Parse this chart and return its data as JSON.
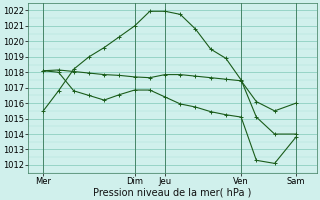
{
  "background_color": "#d0f0ec",
  "grid_major_color": "#80c8b8",
  "grid_minor_color": "#a8ddd4",
  "line_color": "#1a5c1a",
  "xlabel": "Pression niveau de la mer( hPa )",
  "xlim": [
    0.0,
    9.5
  ],
  "ylim": [
    1011.5,
    1022.5
  ],
  "yticks_major": [
    1012,
    1013,
    1014,
    1015,
    1016,
    1017,
    1018,
    1019,
    1020,
    1021,
    1022
  ],
  "xtick_positions": [
    0.5,
    3.5,
    4.5,
    7.0,
    8.8
  ],
  "xtick_labels": [
    "Mer",
    "Dim",
    "Jeu",
    "Ven",
    "Sam"
  ],
  "vline_positions": [
    0.5,
    3.5,
    4.5,
    7.0,
    8.8
  ],
  "line1_x": [
    0.5,
    1.0,
    1.5,
    2.0,
    2.5,
    3.0,
    3.5,
    4.0,
    4.5,
    5.0,
    5.5,
    6.0,
    6.5,
    7.0,
    7.5,
    8.1,
    8.8
  ],
  "line1_y": [
    1015.5,
    1016.8,
    1018.2,
    1019.0,
    1019.6,
    1020.3,
    1021.0,
    1021.95,
    1021.95,
    1021.75,
    1020.8,
    1019.5,
    1018.9,
    1017.5,
    1015.1,
    1014.0,
    1014.0
  ],
  "line2_x": [
    0.5,
    1.0,
    1.5,
    2.0,
    2.5,
    3.0,
    3.5,
    4.0,
    4.5,
    5.0,
    5.5,
    6.0,
    6.5,
    7.0,
    7.5,
    8.1,
    8.8
  ],
  "line2_y": [
    1018.1,
    1018.15,
    1018.05,
    1017.95,
    1017.85,
    1017.8,
    1017.7,
    1017.65,
    1017.85,
    1017.85,
    1017.75,
    1017.65,
    1017.55,
    1017.45,
    1016.1,
    1015.5,
    1016.0
  ],
  "line3_x": [
    0.5,
    1.0,
    1.5,
    2.0,
    2.5,
    3.0,
    3.5,
    4.0,
    4.5,
    5.0,
    5.5,
    6.0,
    6.5,
    7.0,
    7.5,
    8.1,
    8.8
  ],
  "line3_y": [
    1018.1,
    1018.0,
    1016.8,
    1016.5,
    1016.2,
    1016.55,
    1016.85,
    1016.85,
    1016.4,
    1015.95,
    1015.75,
    1015.45,
    1015.25,
    1015.1,
    1012.3,
    1012.1,
    1013.8
  ],
  "xlabel_fontsize": 7,
  "tick_fontsize": 6,
  "linewidth": 0.8,
  "marker_size": 2.5,
  "marker_ew": 0.7
}
